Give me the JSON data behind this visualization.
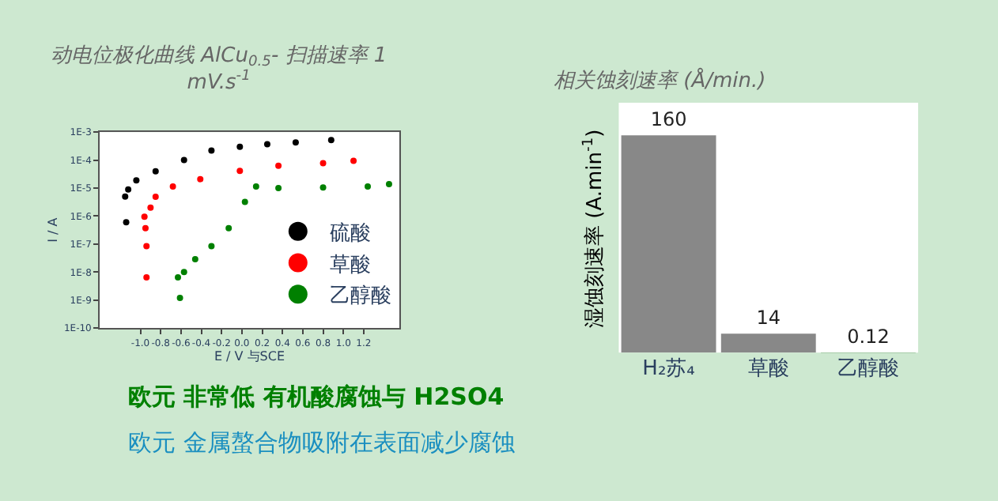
{
  "chart_data": [
    {
      "type": "scatter",
      "title": "动电位极化曲线 AlCu$_{0.5}$- 扫描速率 1 mV.s$^{-1}$",
      "xlabel": "E / V 与SCE",
      "ylabel": "I / A",
      "log": "y",
      "marker": "circle",
      "legend": "bottom right",
      "grid": false,
      "xlim": [
        -1.4,
        1.55
      ],
      "xticks": [
        {
          "value": -1.0,
          "label": "-1.0"
        },
        -0.8,
        -0.6,
        -0.4,
        -0.2,
        {
          "value": 0.0,
          "label": "0.0"
        },
        0.2,
        0.4,
        0.6,
        0.8,
        {
          "value": 1.0,
          "label": "1.0"
        },
        1.2
      ],
      "ylim": [
        1e-10,
        0.001
      ],
      "yticks": [
        {
          "value": 1e-10,
          "label": "1E-10"
        },
        {
          "value": 1e-09,
          "label": "1E-9"
        },
        {
          "value": 1e-08,
          "label": "1E-8"
        },
        {
          "value": 1e-07,
          "label": "1E-7"
        },
        {
          "value": 1e-06,
          "label": "1E-6"
        },
        {
          "value": 1e-05,
          "label": "1E-5"
        },
        {
          "value": 0.0001,
          "label": "1E-4"
        },
        {
          "value": 0.001,
          "label": "1E-3"
        }
      ],
      "series": [
        {
          "name": "硫酸",
          "color": "#000000",
          "x": [
            -1.14,
            -1.15,
            -1.12,
            -1.04,
            -0.85,
            -0.57,
            -0.3,
            -0.02,
            0.25,
            0.53,
            0.88
          ],
          "values": [
            6e-07,
            5e-06,
            9e-06,
            1.9e-05,
            4e-05,
            0.0001,
            0.00022,
            0.0003,
            0.00037,
            0.00043,
            0.00052
          ]
        },
        {
          "name": "草酸",
          "color": "#ff0000",
          "x": [
            -0.94,
            -0.94,
            -0.95,
            -0.96,
            -0.9,
            -0.85,
            -0.68,
            -0.41,
            -0.02,
            0.36,
            0.8,
            1.1
          ],
          "values": [
            6.5e-09,
            8.5e-08,
            3.7e-07,
            9.5e-07,
            2e-06,
            4.9e-06,
            1.15e-05,
            2.1e-05,
            4.1e-05,
            6.3e-05,
            7.8e-05,
            9.5e-05
          ]
        },
        {
          "name": "乙醇酸",
          "color": "#008000",
          "x": [
            -0.61,
            -0.63,
            -0.57,
            -0.46,
            -0.3,
            -0.13,
            0.03,
            0.14,
            0.36,
            0.8,
            1.24,
            1.45
          ],
          "values": [
            1.2e-09,
            6.5e-09,
            1e-08,
            2.9e-08,
            8.5e-08,
            3.7e-07,
            3.2e-06,
            1.15e-05,
            1e-05,
            1.05e-05,
            1.15e-05,
            1.4e-05
          ]
        }
      ],
      "annotations": [
        "欧元 非常低 有机酸腐蚀与 H2SO4",
        "欧元 金属螯合物吸附在表面减少腐蚀"
      ]
    },
    {
      "type": "bar",
      "title": "相关蚀刻速率 (Å/min.)",
      "ylabel": "湿蚀刻速率 (A.min$^{-1}$)",
      "categories": [
        "H₂苏₄",
        "草酸",
        "乙醇酸"
      ],
      "values": [
        160,
        14,
        0.12
      ],
      "colors": [
        "#888888",
        "#888888",
        "#1a6e1a"
      ],
      "data_labels": true,
      "legend": false,
      "grid": false
    }
  ]
}
